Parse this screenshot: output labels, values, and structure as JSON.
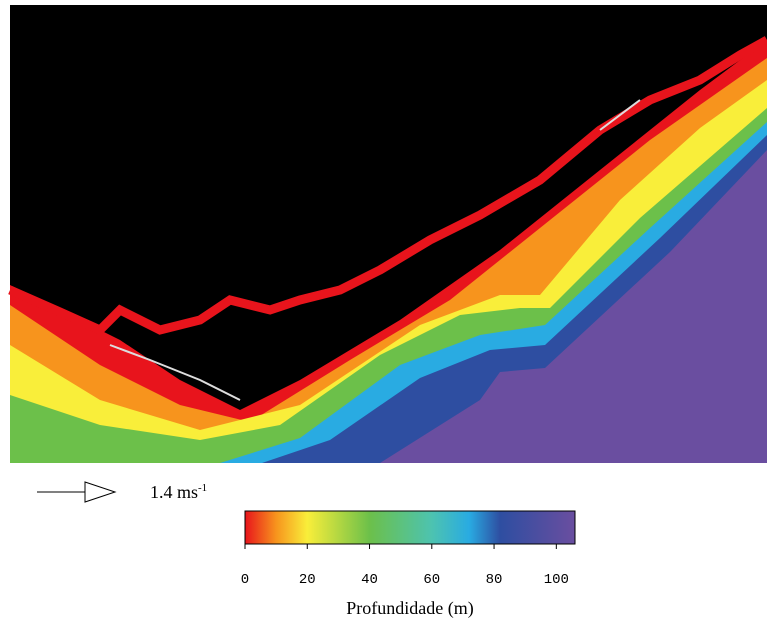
{
  "legend_arrow": {
    "text": "1.4 ms",
    "exponent": "-1"
  },
  "colorbar": {
    "label": "Profundidade (m)",
    "range": [
      0,
      106
    ],
    "ticks": [
      0,
      20,
      40,
      60,
      80,
      100
    ],
    "colormap": [
      {
        "value": 0,
        "color": "#e8141c"
      },
      {
        "value": 10,
        "color": "#f7941d"
      },
      {
        "value": 20,
        "color": "#f9ee3a"
      },
      {
        "value": 40,
        "color": "#6cc04a"
      },
      {
        "value": 60,
        "color": "#4dc3b0"
      },
      {
        "value": 72,
        "color": "#29abe2"
      },
      {
        "value": 82,
        "color": "#2e4ea1"
      },
      {
        "value": 106,
        "color": "#6a4ea0"
      }
    ]
  }
}
